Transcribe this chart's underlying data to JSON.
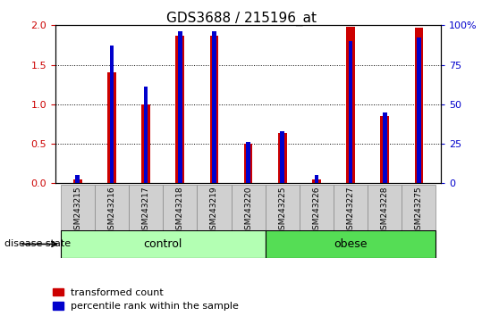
{
  "title": "GDS3688 / 215196_at",
  "categories": [
    "GSM243215",
    "GSM243216",
    "GSM243217",
    "GSM243218",
    "GSM243219",
    "GSM243220",
    "GSM243225",
    "GSM243226",
    "GSM243227",
    "GSM243228",
    "GSM243275"
  ],
  "red_values": [
    0.05,
    1.41,
    1.0,
    1.87,
    1.87,
    0.5,
    0.64,
    0.05,
    1.98,
    0.85,
    1.97
  ],
  "blue_values_pct": [
    5,
    87,
    61,
    96,
    96,
    26,
    33,
    5,
    90,
    45,
    92
  ],
  "ylim_left": [
    0,
    2
  ],
  "ylim_right": [
    0,
    100
  ],
  "yticks_left": [
    0,
    0.5,
    1.0,
    1.5,
    2.0
  ],
  "yticks_right": [
    0,
    25,
    50,
    75,
    100
  ],
  "ytick_labels_right": [
    "0",
    "25",
    "50",
    "75",
    "100%"
  ],
  "control_indices": [
    0,
    1,
    2,
    3,
    4,
    5
  ],
  "obese_indices": [
    6,
    7,
    8,
    9,
    10
  ],
  "control_color": "#b3ffb3",
  "obese_color": "#55dd55",
  "bar_color_red": "#cc0000",
  "bar_color_blue": "#0000cc",
  "red_bar_width": 0.25,
  "blue_bar_width": 0.12,
  "disease_state_label": "disease state",
  "legend_red_label": "transformed count",
  "legend_blue_label": "percentile rank within the sample",
  "axis_color_left": "#cc0000",
  "axis_color_right": "#0000cc",
  "xtick_bg_color": "#d0d0d0",
  "plot_bg_color": "#ffffff"
}
